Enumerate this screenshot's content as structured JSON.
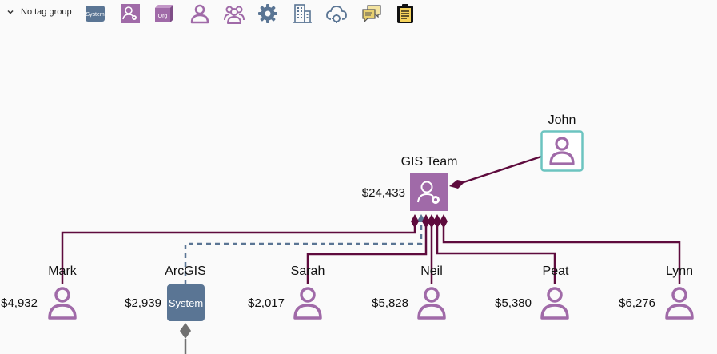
{
  "toolbar": {
    "tag_group_label": "No tag group",
    "icons": [
      {
        "name": "system-shape-icon",
        "text": "System",
        "color": "#5a7594"
      },
      {
        "name": "team-shape-icon",
        "color": "#a06aa8"
      },
      {
        "name": "org-shape-icon",
        "text": "Org",
        "color": "#a06aa8"
      },
      {
        "name": "person-icon",
        "color": "#a06aa8"
      },
      {
        "name": "group-icon",
        "color": "#a06aa8"
      },
      {
        "name": "gear-icon",
        "color": "#5a7594"
      },
      {
        "name": "building-icon",
        "color": "#5a7594"
      },
      {
        "name": "cloud-gear-icon",
        "color": "#5a7594"
      },
      {
        "name": "chat-icon",
        "color": "#c8a830"
      },
      {
        "name": "clipboard-icon",
        "color": "#e8c23a"
      }
    ]
  },
  "diagram": {
    "colors": {
      "person": "#a06aa8",
      "system": "#5a7594",
      "link": "#5e0b3d",
      "selected": "#6cc4c0"
    },
    "nodes": {
      "john": {
        "label": "John"
      },
      "gis_team": {
        "label": "GIS Team",
        "cost": "$24,433"
      },
      "mark": {
        "label": "Mark",
        "cost": "$4,932"
      },
      "arcgis": {
        "label": "ArcGIS",
        "cost": "$2,939",
        "box_text": "System"
      },
      "sarah": {
        "label": "Sarah",
        "cost": "$2,017"
      },
      "neil": {
        "label": "Neil",
        "cost": "$5,828"
      },
      "peat": {
        "label": "Peat",
        "cost": "$5,380"
      },
      "lynn": {
        "label": "Lynn",
        "cost": "$6,276"
      }
    }
  }
}
